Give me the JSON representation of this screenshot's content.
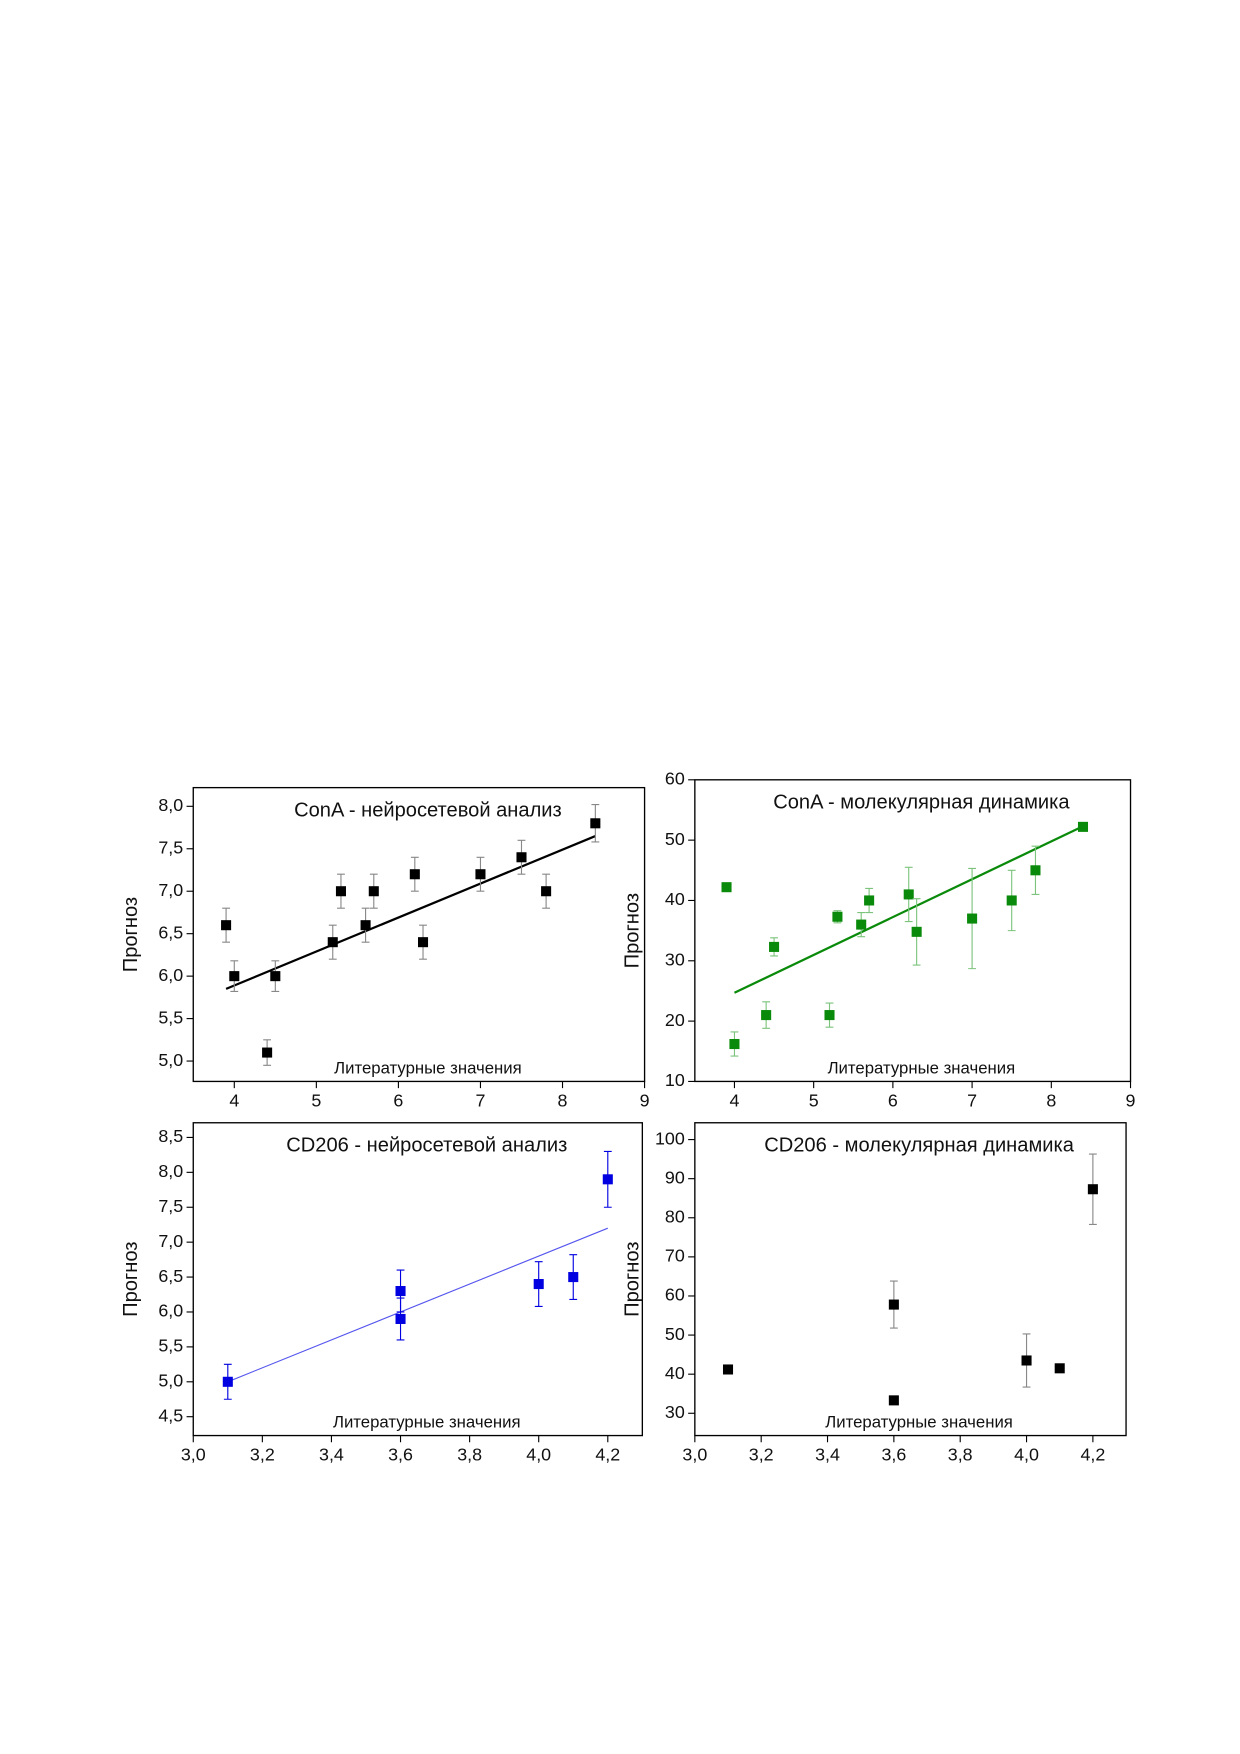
{
  "chart_data": [
    {
      "type": "scatter",
      "title": "ConA - нейросетевой анализ",
      "x_label": "Литературные значения",
      "y_label": "Прогноз",
      "x": [
        3.9,
        4.0,
        4.4,
        4.5,
        5.2,
        5.3,
        5.6,
        5.7,
        6.2,
        6.3,
        7.0,
        7.5,
        7.8,
        8.4
      ],
      "y": [
        6.6,
        6.0,
        5.1,
        6.0,
        6.4,
        7.0,
        6.6,
        7.0,
        7.2,
        6.4,
        7.2,
        7.4,
        7.0,
        7.8
      ],
      "errors": [
        0.2,
        0.18,
        0.15,
        0.18,
        0.2,
        0.2,
        0.2,
        0.2,
        0.2,
        0.2,
        0.2,
        0.2,
        0.2,
        0.22
      ],
      "color": "#000000",
      "error_color": "#888888",
      "fit_line": {
        "x": [
          3.9,
          8.4
        ],
        "y": [
          5.85,
          7.65
        ],
        "color": "#000000"
      },
      "xlim": [
        3.5,
        9
      ],
      "xticks": [
        4,
        5,
        6,
        7,
        8,
        9
      ],
      "ylim": [
        4.76,
        8.22
      ],
      "yticks": [
        {
          "value": 5.0,
          "label": "5,0"
        },
        {
          "value": 5.5,
          "label": "5,5"
        },
        {
          "value": 6.0,
          "label": "6,0"
        },
        {
          "value": 6.5,
          "label": "6,5"
        },
        {
          "value": 7.0,
          "label": "7,0"
        },
        {
          "value": 7.5,
          "label": "7,5"
        },
        {
          "value": 8.0,
          "label": "8,0"
        }
      ]
    },
    {
      "type": "scatter",
      "title": "ConA - молекулярная динамика",
      "x_label": "Литературные значения",
      "y_label": "Прогноз",
      "x": [
        3.9,
        4.0,
        4.4,
        4.5,
        5.2,
        5.3,
        5.6,
        5.7,
        6.2,
        6.3,
        7.0,
        7.5,
        7.8,
        8.4
      ],
      "y": [
        42.2,
        16.2,
        21,
        32.3,
        21,
        37.3,
        36,
        40,
        41,
        34.8,
        37,
        40,
        45,
        52.2
      ],
      "errors": [
        0.4,
        2,
        2.2,
        1.5,
        2,
        1,
        2,
        2,
        4.5,
        5.5,
        8.3,
        5,
        4,
        0.5
      ],
      "color": "#0a8a0a",
      "error_color": "#7cc47c",
      "fit_line": {
        "x": [
          4.0,
          8.4
        ],
        "y": [
          24.7,
          52.3
        ],
        "color": "#0a8a0a"
      },
      "xlim": [
        3.5,
        9
      ],
      "xticks": [
        4,
        5,
        6,
        7,
        8,
        9
      ],
      "ylim": [
        10,
        60
      ],
      "yticks": [
        10,
        20,
        30,
        40,
        50,
        60
      ]
    },
    {
      "type": "scatter",
      "title": "CD206 - нейросетевой анализ",
      "x_label": "Литературные значения",
      "y_label": "Прогноз",
      "x": [
        3.1,
        3.6,
        3.6,
        4.0,
        4.1,
        4.2
      ],
      "y": [
        5.0,
        6.3,
        5.9,
        6.4,
        6.5,
        7.9
      ],
      "errors": [
        0.25,
        0.3,
        0.3,
        0.32,
        0.32,
        0.4
      ],
      "color": "#0000e0",
      "error_color": "#0000e0",
      "fit_line": {
        "x": [
          3.1,
          4.2
        ],
        "y": [
          5.0,
          7.2
        ],
        "color": "#5555ee"
      },
      "xlim": [
        3.0,
        4.3
      ],
      "xticks": [
        {
          "value": 3.0,
          "label": "3,0"
        },
        {
          "value": 3.2,
          "label": "3,2"
        },
        {
          "value": 3.4,
          "label": "3,4"
        },
        {
          "value": 3.6,
          "label": "3,6"
        },
        {
          "value": 3.8,
          "label": "3,8"
        },
        {
          "value": 4.0,
          "label": "4,0"
        },
        {
          "value": 4.2,
          "label": "4,2"
        }
      ],
      "ylim": [
        4.23,
        8.71
      ],
      "yticks": [
        {
          "value": 4.5,
          "label": "4,5"
        },
        {
          "value": 5.0,
          "label": "5,0"
        },
        {
          "value": 5.5,
          "label": "5,5"
        },
        {
          "value": 6.0,
          "label": "6,0"
        },
        {
          "value": 6.5,
          "label": "6,5"
        },
        {
          "value": 7.0,
          "label": "7,0"
        },
        {
          "value": 7.5,
          "label": "7,5"
        },
        {
          "value": 8.0,
          "label": "8,0"
        },
        {
          "value": 8.5,
          "label": "8,5"
        }
      ]
    },
    {
      "type": "scatter",
      "title": "CD206 - молекулярная динамика",
      "x_label": "Литературные значения",
      "y_label": "Прогноз",
      "x": [
        3.1,
        3.6,
        3.6,
        4.0,
        4.1,
        4.2
      ],
      "y": [
        41.2,
        57.8,
        33.3,
        43.5,
        41.5,
        87.3
      ],
      "errors": [
        0.5,
        6,
        0,
        6.8,
        0,
        9
      ],
      "color": "#000000",
      "error_color": "#888888",
      "xlim": [
        3.0,
        4.3
      ],
      "xticks": [
        {
          "value": 3.0,
          "label": "3,0"
        },
        {
          "value": 3.2,
          "label": "3,2"
        },
        {
          "value": 3.4,
          "label": "3,4"
        },
        {
          "value": 3.6,
          "label": "3,6"
        },
        {
          "value": 3.8,
          "label": "3,8"
        },
        {
          "value": 4.0,
          "label": "4,0"
        },
        {
          "value": 4.2,
          "label": "4,2"
        }
      ],
      "ylim": [
        24.3,
        104.3
      ],
      "yticks": [
        30,
        40,
        50,
        60,
        70,
        80,
        90,
        100
      ]
    }
  ]
}
